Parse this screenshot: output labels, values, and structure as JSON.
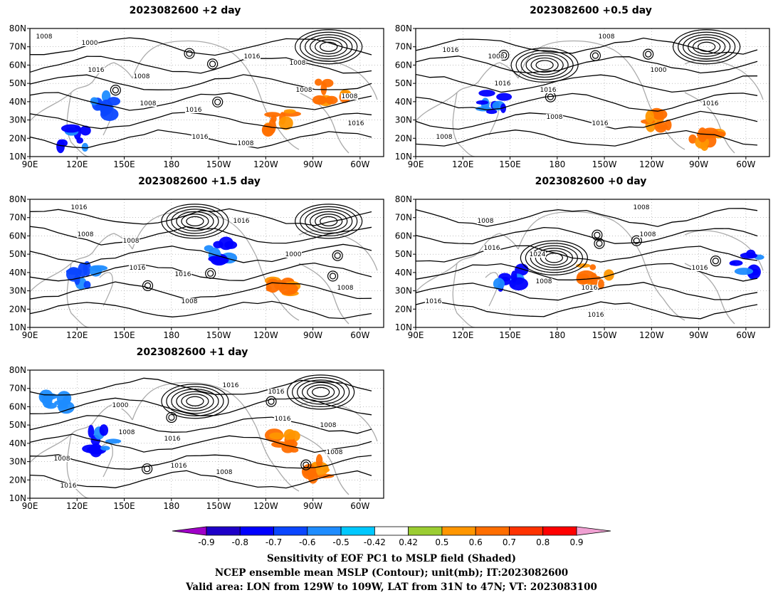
{
  "lat_ticks": [
    "80N",
    "70N",
    "60N",
    "50N",
    "40N",
    "30N",
    "20N",
    "10N"
  ],
  "lon_ticks": [
    "90E",
    "120E",
    "150E",
    "180",
    "150W",
    "120W",
    "90W",
    "60W"
  ],
  "panels": [
    {
      "id": "p2",
      "title": "2023082600 +2 day",
      "contour_labels": [
        "1008",
        "1016",
        "1008",
        "1016",
        "1016",
        "1008",
        "1016",
        "1000",
        "1008",
        "1016",
        "1008",
        "1008",
        "1008"
      ],
      "low_centers": [
        {
          "lon": -80,
          "lat": 70
        }
      ],
      "shading": [
        {
          "lon": 118,
          "lat": 20,
          "value": -0.7
        },
        {
          "lon": 135,
          "lat": 38,
          "value": -0.6
        },
        {
          "lon": -110,
          "lat": 30,
          "value": 0.6
        },
        {
          "lon": -78,
          "lat": 45,
          "value": 0.6
        }
      ]
    },
    {
      "id": "p05",
      "title": "2023082600 +0.5 day",
      "contour_labels": [
        "1016",
        "1016",
        "1008",
        "1008",
        "1000",
        "1016",
        "1008",
        "1008",
        "1016",
        "1016"
      ],
      "low_centers": [
        {
          "lon": 172,
          "lat": 60
        },
        {
          "lon": -85,
          "lat": 70
        }
      ],
      "shading": [
        {
          "lon": 140,
          "lat": 40,
          "value": -0.7
        },
        {
          "lon": -115,
          "lat": 30,
          "value": 0.6
        },
        {
          "lon": -85,
          "lat": 20,
          "value": 0.6
        }
      ]
    },
    {
      "id": "p15",
      "title": "2023082600 +1.5 day",
      "contour_labels": [
        "1008",
        "1016",
        "1008",
        "1016",
        "1000",
        "1008",
        "1016",
        "1008",
        "1016"
      ],
      "low_centers": [
        {
          "lon": -165,
          "lat": 68
        },
        {
          "lon": -80,
          "lat": 68
        }
      ],
      "shading": [
        {
          "lon": 125,
          "lat": 37,
          "value": -0.6
        },
        {
          "lon": -148,
          "lat": 52,
          "value": -0.7
        },
        {
          "lon": -110,
          "lat": 30,
          "value": 0.6
        }
      ]
    },
    {
      "id": "p0",
      "title": "2023082600 +0 day",
      "contour_labels": [
        "1016",
        "1008",
        "1016",
        "1008",
        "1016",
        "1016",
        "1008",
        "1024",
        "1016",
        "1008"
      ],
      "low_centers": [
        {
          "lon": 178,
          "lat": 48
        }
      ],
      "shading": [
        {
          "lon": 150,
          "lat": 36,
          "value": -0.7
        },
        {
          "lon": -155,
          "lat": 38,
          "value": 0.6
        },
        {
          "lon": -60,
          "lat": 45,
          "value": -0.7
        }
      ]
    },
    {
      "id": "p1",
      "title": "2023082600 +1 day",
      "contour_labels": [
        "1008",
        "1016",
        "1016",
        "1016",
        "1008",
        "1016",
        "1000",
        "1016",
        "1008",
        "1016",
        "1008",
        "1008"
      ],
      "low_centers": [
        {
          "lon": -165,
          "lat": 63
        },
        {
          "lon": -85,
          "lat": 68
        }
      ],
      "shading": [
        {
          "lon": 137,
          "lat": 42,
          "value": -0.7
        },
        {
          "lon": 105,
          "lat": 60,
          "value": -0.5
        },
        {
          "lon": -90,
          "lat": 25,
          "value": 0.6
        },
        {
          "lon": -110,
          "lat": 40,
          "value": 0.6
        }
      ]
    }
  ],
  "colorbar": {
    "labels": [
      "-0.9",
      "-0.8",
      "-0.7",
      "-0.6",
      "-0.5",
      "-0.42",
      "0.42",
      "0.5",
      "0.6",
      "0.7",
      "0.8",
      "0.9"
    ],
    "colors": [
      "#a000c8",
      "#1e00c8",
      "#0000ff",
      "#0a46ff",
      "#1e8cff",
      "#00c8ff",
      "#ffffff",
      "#9bcd32",
      "#ff9600",
      "#ff6e00",
      "#ff3200",
      "#ff0000",
      "#f0a0d2"
    ]
  },
  "footer": {
    "line1": "Sensitivity of EOF PC1 to MSLP field (Shaded)",
    "line2": "NCEP ensemble mean MSLP (Contour); unit(mb); IT:2023082600",
    "line3": "Valid area: LON from 129W to 109W, LAT from 31N to 47N; VT: 2023083100"
  }
}
